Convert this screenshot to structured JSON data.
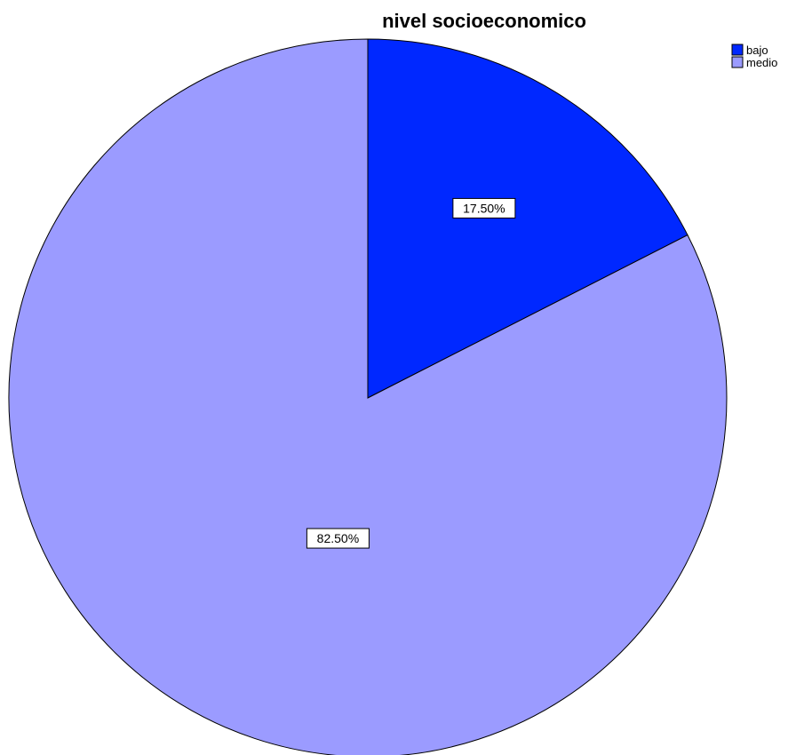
{
  "chart_data": {
    "type": "pie",
    "title": "nivel socioeconomico",
    "categories": [
      "bajo",
      "medio"
    ],
    "values": [
      17.5,
      82.5
    ],
    "data_labels": [
      "17.50%",
      "82.50%"
    ],
    "colors": [
      "#0028ff",
      "#9b9bff"
    ],
    "start_angle": "12 o'clock",
    "direction": "clockwise",
    "legend": {
      "placement": "top-right",
      "entries": [
        "bajo",
        "medio"
      ]
    }
  }
}
